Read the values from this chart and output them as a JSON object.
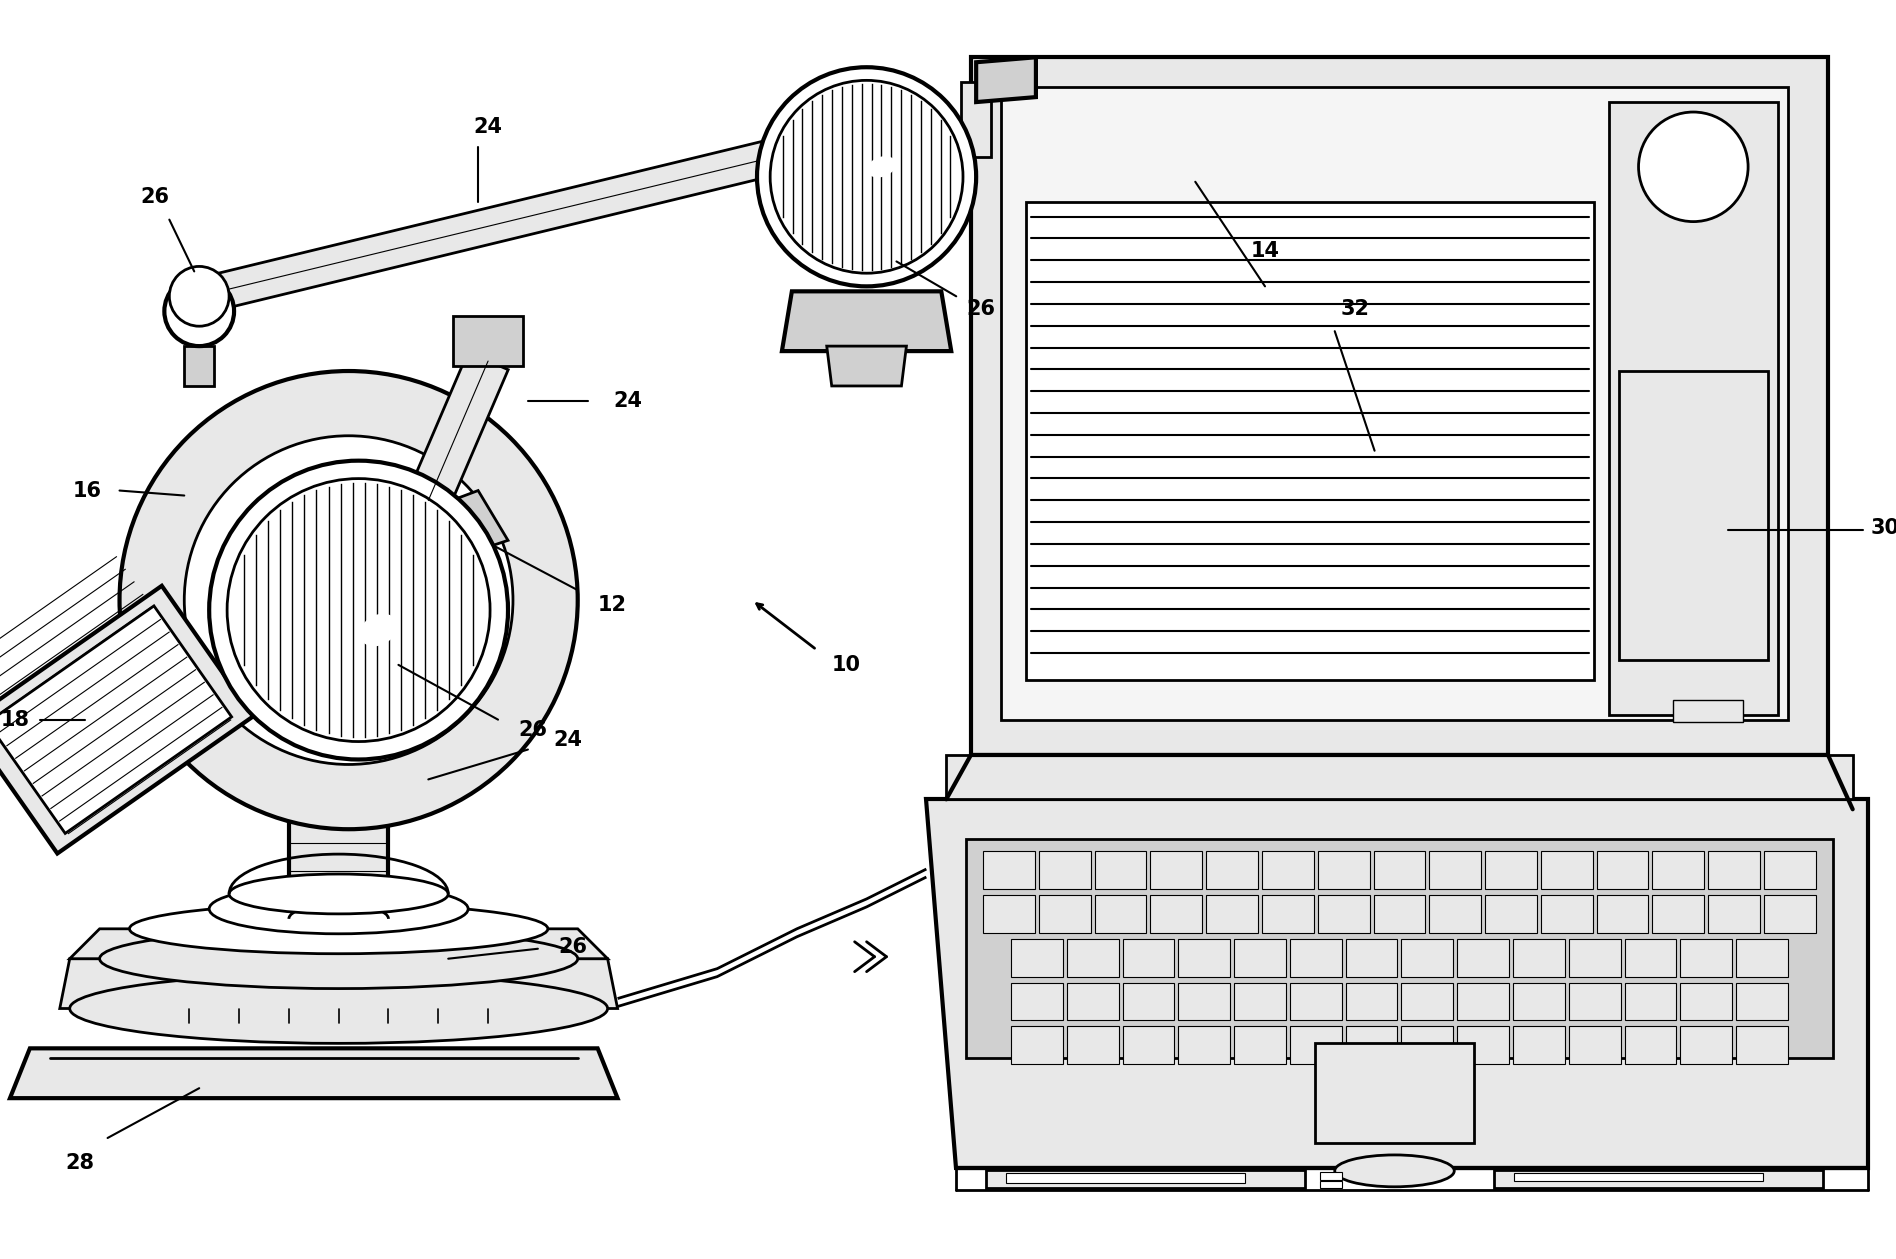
{
  "bg": "#ffffff",
  "lc": "#000000",
  "lw": 2.0,
  "tlw": 3.0,
  "fig_w": 18.96,
  "fig_h": 12.59,
  "dpi": 100,
  "gray_light": "#e8e8e8",
  "gray_mid": "#d0d0d0",
  "gray_dark": "#b0b0b0",
  "font_size": 15
}
